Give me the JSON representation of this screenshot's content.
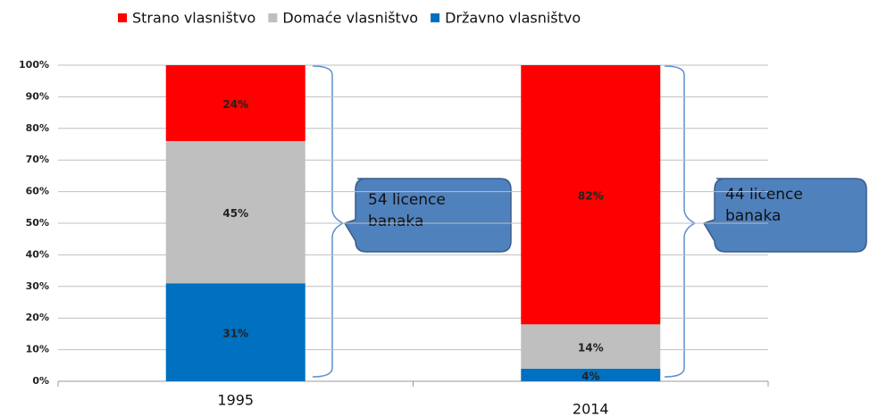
{
  "chart_data": {
    "type": "stacked_bar",
    "categories": [
      "1995",
      "2014"
    ],
    "series": [
      {
        "name": "Državno vlasništvo",
        "color": "#0070c0",
        "values": [
          31,
          4
        ],
        "value_labels": [
          "31%",
          "4%"
        ]
      },
      {
        "name": "Domaće vlasništvo",
        "color": "#bfbfbf",
        "values": [
          45,
          14
        ],
        "value_labels": [
          "45%",
          "14%"
        ]
      },
      {
        "name": "Strano vlasništvo",
        "color": "#ff0000",
        "values": [
          24,
          82
        ],
        "value_labels": [
          "24%",
          "82%"
        ]
      }
    ],
    "ylim": [
      0,
      100
    ],
    "yticks": [
      {
        "value": 0,
        "label": "0%"
      },
      {
        "value": 10,
        "label": "10%"
      },
      {
        "value": 20,
        "label": "20%"
      },
      {
        "value": 30,
        "label": "30%"
      },
      {
        "value": 40,
        "label": "40%"
      },
      {
        "value": 50,
        "label": "50%"
      },
      {
        "value": 60,
        "label": "60%"
      },
      {
        "value": 70,
        "label": "70%"
      },
      {
        "value": 80,
        "label": "80%"
      },
      {
        "value": 90,
        "label": "90%"
      },
      {
        "value": 100,
        "label": "100%"
      }
    ],
    "grid": true,
    "legend": "top",
    "annotations": [
      "54 licence banaka",
      "44 licence banaka"
    ]
  }
}
